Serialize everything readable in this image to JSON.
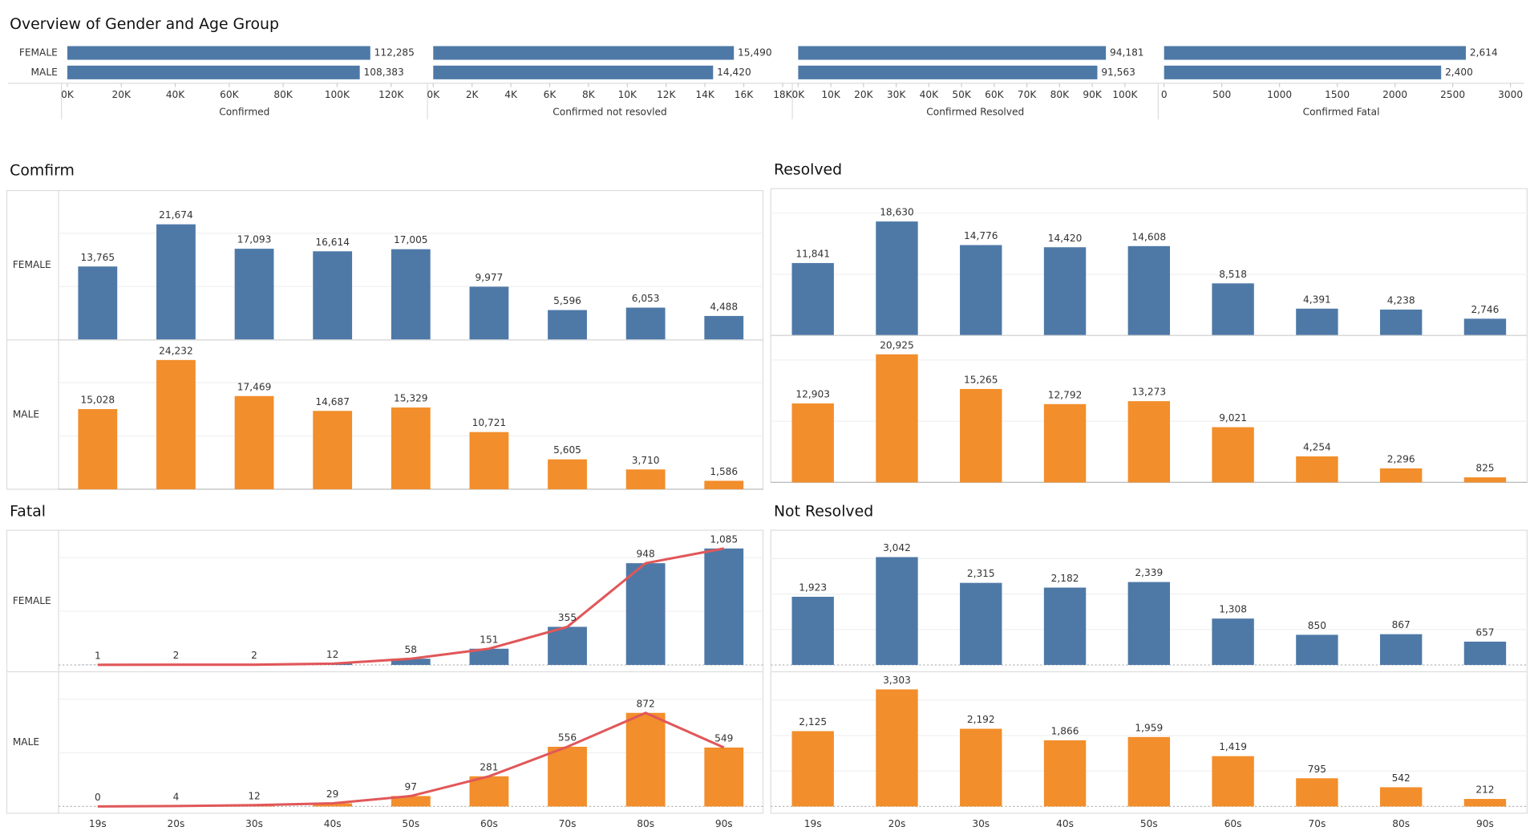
{
  "title": "Overview of Gender and Age Group",
  "chart_data": [
    {
      "type": "hbar",
      "categories": [
        "FEMALE",
        "MALE"
      ],
      "values": [
        112285,
        108383
      ],
      "value_labels": [
        "112,285",
        "108,383"
      ],
      "color": "#4e79a7",
      "xlabel": "Confirmed",
      "xlim": [
        0,
        132000
      ],
      "xticks": [
        {
          "value": 0,
          "label": "0K"
        },
        {
          "value": 20000,
          "label": "20K"
        },
        {
          "value": 40000,
          "label": "40K"
        },
        {
          "value": 60000,
          "label": "60K"
        },
        {
          "value": 80000,
          "label": "80K"
        },
        {
          "value": 100000,
          "label": "100K"
        },
        {
          "value": 120000,
          "label": "120K"
        }
      ]
    },
    {
      "type": "hbar",
      "values": [
        15490,
        14420
      ],
      "value_labels": [
        "15,490",
        "14,420"
      ],
      "color": "#4e79a7",
      "xlabel": "Confirmed not resovled",
      "xlim": [
        0,
        18300
      ],
      "xticks": [
        {
          "value": 0,
          "label": "0K"
        },
        {
          "value": 2000,
          "label": "2K"
        },
        {
          "value": 4000,
          "label": "4K"
        },
        {
          "value": 6000,
          "label": "6K"
        },
        {
          "value": 8000,
          "label": "8K"
        },
        {
          "value": 10000,
          "label": "10K"
        },
        {
          "value": 12000,
          "label": "12K"
        },
        {
          "value": 14000,
          "label": "14K"
        },
        {
          "value": 16000,
          "label": "16K"
        },
        {
          "value": 18000,
          "label": "18K"
        }
      ]
    },
    {
      "type": "hbar",
      "values": [
        94181,
        91563
      ],
      "value_labels": [
        "94,181",
        "91,563"
      ],
      "color": "#4e79a7",
      "xlabel": "Confirmed Resolved",
      "xlim": [
        0,
        109000
      ],
      "xticks": [
        {
          "value": 0,
          "label": "0K"
        },
        {
          "value": 10000,
          "label": "10K"
        },
        {
          "value": 20000,
          "label": "20K"
        },
        {
          "value": 30000,
          "label": "30K"
        },
        {
          "value": 40000,
          "label": "40K"
        },
        {
          "value": 50000,
          "label": "50K"
        },
        {
          "value": 60000,
          "label": "60K"
        },
        {
          "value": 70000,
          "label": "70K"
        },
        {
          "value": 80000,
          "label": "80K"
        },
        {
          "value": 90000,
          "label": "90K"
        },
        {
          "value": 100000,
          "label": "100K"
        }
      ]
    },
    {
      "type": "hbar",
      "values": [
        2614,
        2400
      ],
      "value_labels": [
        "2,614",
        "2,400"
      ],
      "color": "#4e79a7",
      "xlabel": "Confirmed Fatal",
      "xlim": [
        0,
        3085
      ],
      "xticks": [
        0,
        500,
        1000,
        1500,
        2000,
        2500,
        3000
      ]
    },
    {
      "type": "bar",
      "title": "Comfirm",
      "ylim": [
        0,
        28000
      ],
      "yticks": [
        0,
        10000,
        20000
      ],
      "grid": true,
      "series": [
        {
          "name": "FEMALE",
          "color": "#4e79a7",
          "values": [
            13765,
            21674,
            17093,
            16614,
            17005,
            9977,
            5596,
            6053,
            4488
          ],
          "value_labels": [
            "13,765",
            "21,674",
            "17,093",
            "16,614",
            "17,005",
            "9,977",
            "5,596",
            "6,053",
            "4,488"
          ]
        },
        {
          "name": "MALE",
          "color": "#f28e2b",
          "values": [
            15028,
            24232,
            17469,
            14687,
            15329,
            10721,
            5605,
            3710,
            1586
          ],
          "value_labels": [
            "15,028",
            "24,232",
            "17,469",
            "14,687",
            "15,329",
            "10,721",
            "5,605",
            "3,710",
            "1,586"
          ]
        }
      ]
    },
    {
      "type": "bar",
      "title": "Resolved",
      "ylim": [
        0,
        24000
      ],
      "yticks": [
        0,
        10000,
        20000
      ],
      "grid": true,
      "series": [
        {
          "color": "#4e79a7",
          "values": [
            11841,
            18630,
            14776,
            14420,
            14608,
            8518,
            4391,
            4238,
            2746
          ],
          "value_labels": [
            "11,841",
            "18,630",
            "14,776",
            "14,420",
            "14,608",
            "8,518",
            "4,391",
            "4,238",
            "2,746"
          ]
        },
        {
          "color": "#f28e2b",
          "values": [
            12903,
            20925,
            15265,
            12792,
            13273,
            9021,
            4254,
            2296,
            825
          ],
          "value_labels": [
            "12,903",
            "20,925",
            "15,265",
            "12,792",
            "13,273",
            "9,021",
            "4,254",
            "2,296",
            "825"
          ]
        }
      ]
    },
    {
      "type": "combo",
      "title": "Fatal",
      "line_color": "#e15759",
      "ylim": [
        0,
        1255
      ],
      "yticks": [
        0,
        500,
        1000
      ],
      "grid": true,
      "categories": [
        "19s",
        "20s",
        "30s",
        "40s",
        "50s",
        "60s",
        "70s",
        "80s",
        "90s"
      ],
      "series": [
        {
          "name": "FEMALE",
          "color": "#4e79a7",
          "values": [
            1,
            2,
            2,
            12,
            58,
            151,
            355,
            948,
            1085
          ],
          "value_labels": [
            "1",
            "2",
            "2",
            "12",
            "58",
            "151",
            "355",
            "948",
            "1,085"
          ]
        },
        {
          "name": "MALE",
          "color": "#f28e2b",
          "values": [
            0,
            4,
            12,
            29,
            97,
            281,
            556,
            872,
            549
          ],
          "value_labels": [
            "0",
            "4",
            "12",
            "29",
            "97",
            "281",
            "556",
            "872",
            "549"
          ]
        }
      ]
    },
    {
      "type": "bar",
      "title": "Not Resolved",
      "ylim": [
        0,
        3800
      ],
      "yticks": [
        0,
        1000,
        2000,
        3000
      ],
      "grid": true,
      "categories": [
        "19s",
        "20s",
        "30s",
        "40s",
        "50s",
        "60s",
        "70s",
        "80s",
        "90s"
      ],
      "series": [
        {
          "color": "#4e79a7",
          "values": [
            1923,
            3042,
            2315,
            2182,
            2339,
            1308,
            850,
            867,
            657
          ],
          "value_labels": [
            "1,923",
            "3,042",
            "2,315",
            "2,182",
            "2,339",
            "1,308",
            "850",
            "867",
            "657"
          ]
        },
        {
          "color": "#f28e2b",
          "values": [
            2125,
            3303,
            2192,
            1866,
            1959,
            1419,
            795,
            542,
            212
          ],
          "value_labels": [
            "2,125",
            "3,303",
            "2,192",
            "1,866",
            "1,959",
            "1,419",
            "795",
            "542",
            "212"
          ]
        }
      ]
    }
  ]
}
